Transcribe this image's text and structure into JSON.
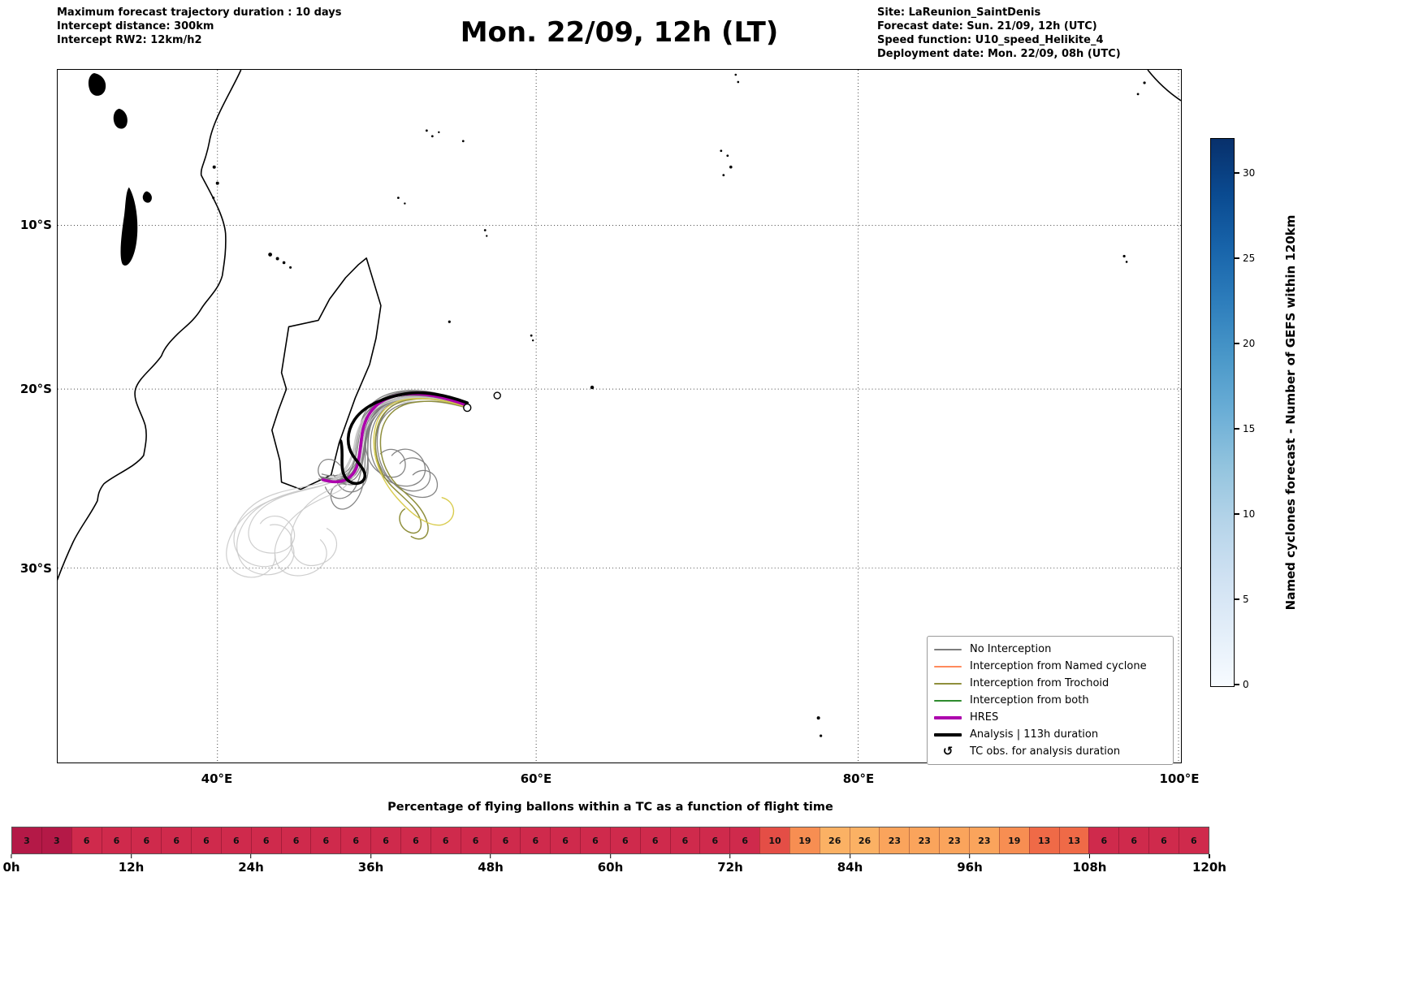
{
  "header": {
    "left_lines": [
      "Maximum forecast trajectory duration : 10 days",
      "Intercept distance: 300km",
      "Intercept RW2: 12km/h2"
    ],
    "title": "Mon. 22/09, 12h (LT)",
    "right_lines": [
      "Site: LaReunion_SaintDenis",
      "Forecast date: Sun. 21/09, 12h (UTC)",
      "Speed function: U10_speed_Helikite_4",
      "Deployment date: Mon. 22/09, 08h (UTC)"
    ]
  },
  "map": {
    "lat_ticks": [
      "10°S",
      "20°S",
      "30°S"
    ],
    "lon_ticks": [
      "40°E",
      "60°E",
      "80°E",
      "100°E"
    ],
    "legend_items": [
      {
        "label": "No Interception",
        "color": "#7d7d7d",
        "lw": 2
      },
      {
        "label": "Interception from Named cyclone",
        "color": "#ff8a5c",
        "lw": 2
      },
      {
        "label": "Interception from Trochoid",
        "color": "#8f8f3c",
        "lw": 2
      },
      {
        "label": "Interception from both",
        "color": "#2e8b2e",
        "lw": 2
      },
      {
        "label": "HRES",
        "color": "#ad00ad",
        "lw": 4
      },
      {
        "label": "Analysis | 113h duration",
        "color": "#000000",
        "lw": 4
      },
      {
        "label": "TC obs. for analysis duration",
        "symbol": "↺"
      }
    ]
  },
  "colorbar": {
    "label": "Named cyclones forecast - Number of GEFS within 120km",
    "ticks": [
      "0",
      "5",
      "10",
      "15",
      "20",
      "25",
      "30"
    ],
    "gradient": [
      "#f7fbff",
      "#e3eef9",
      "#cfe1f2",
      "#b5d4e9",
      "#93c4de",
      "#6baed6",
      "#4a98c9",
      "#2e7ebc",
      "#1864aa",
      "#0a4a90",
      "#08306b"
    ]
  },
  "chart_data": [
    {
      "type": "line",
      "title": "Mon. 22/09, 12h (LT)",
      "x_ticks": [
        "40°E",
        "60°E",
        "80°E",
        "100°E"
      ],
      "y_ticks": [
        "10°S",
        "20°S",
        "30°S"
      ],
      "legend_position": "lower right",
      "grid": "dotted",
      "series": [
        {
          "name": "No Interception",
          "color": "#7d7d7d",
          "lw": 1.3,
          "opacity": 0.95,
          "paths": [
            "M507 417 C480 406 450 398 425 401 C398 404 378 418 372 442 C366 466 368 488 358 500 C348 510 332 508 322 505",
            "M507 417 C478 404 445 395 420 399 C395 403 380 420 376 445 C372 470 372 492 360 503 C350 512 336 510 326 507",
            "M507 415 C482 407 455 402 430 406 C405 410 388 425 382 450 C377 472 378 495 366 505 C356 513 340 509 330 506",
            "M507 416 C485 405 458 397 432 400 C404 403 386 416 379 438 C372 462 374 486 362 499 C352 509 338 507 328 503",
            "M507 417 C480 405 452 399 428 403 C402 407 386 422 381 447 C376 472 385 492 402 500 C418 508 432 498 428 482 C424 468 408 464 398 474",
            "M507 418 C478 408 448 402 424 408 C400 414 388 432 386 456 C384 482 396 505 418 512 C440 519 458 505 452 486 C446 468 424 462 412 476",
            "M507 417 C480 408 450 402 426 406 C400 410 384 428 380 452 C376 478 376 505 364 520 C352 535 336 530 330 515",
            "M507 416 C482 404 452 396 426 399 C398 402 380 417 374 440 C369 463 370 486 358 497 C349 506 335 505 324 502",
            "M507 414 C484 402 456 394 430 396 C402 398 382 410 375 432 C368 456 370 480 359 493 C350 503 336 502 326 499",
            "M507 415 C480 402 450 394 424 398 C397 402 380 419 375 444 C371 468 372 490 361 501 C351 511 337 508 327 504",
            "M507 417 C479 406 449 400 424 404 C398 408 382 425 378 450 C374 476 366 498 346 506 C330 512 318 502 322 490 C326 478 340 478 348 488",
            "M507 418 C480 410 452 406 428 412 C404 418 392 438 392 462 C392 488 406 510 428 518 C448 525 464 512 458 494 C452 478 432 474 422 486",
            "M507 416 C483 406 456 400 431 403 C404 406 387 421 381 445 C376 468 377 491 365 502 C355 512 341 509 331 505",
            "M507 417 C481 407 453 400 428 404 C402 408 388 424 384 448 C380 472 386 494 376 506 C366 517 348 512 340 500",
            "M507 417 C479 407 449 401 425 405 C399 409 385 427 381 452 C377 478 382 505 372 525 C362 545 344 548 338 532 C333 518 344 508 356 512",
            "M507 415 C481 404 451 397 426 400 C399 403 382 419 376 443 C371 466 372 489 360 500 C350 510 336 507 326 503",
            "M507 417 C481 408 453 403 429 408 C405 413 395 432 394 456 C393 482 404 506 426 520 C448 534 470 528 468 510 C466 494 448 490 438 500",
            "M507 416 C480 406 450 400 425 404 C400 408 386 426 383 450 C380 476 388 500 376 514 C366 526 350 522 344 508"
          ]
        },
        {
          "name": "No Interception (faded)",
          "color": "#c9c9c9",
          "lw": 1.2,
          "opacity": 0.9,
          "paths": [
            "M507 417 C478 408 448 402 420 406 C390 410 372 428 368 455 C364 482 356 505 330 512 C300 520 268 525 248 545 C228 565 232 592 258 596 C284 600 300 580 288 562 C278 547 258 548 250 560",
            "M507 417 C476 407 444 402 416 408 C388 414 372 434 368 460 C364 486 350 508 322 514 C290 521 255 528 235 552 C212 580 218 615 248 622 C278 629 300 605 288 584",
            "M507 416 C477 406 446 400 418 405 C390 410 372 430 368 456 C364 482 352 504 326 510 C296 517 262 520 240 538 C214 559 210 590 230 605 C252 621 282 612 288 590 C293 572 278 558 262 562",
            "M507 418 C478 410 446 406 418 412 C392 418 378 438 376 464 C374 492 362 515 338 524 C310 535 284 552 272 578 C260 604 274 628 302 624 C330 620 340 595 324 580",
            "M507 417 C477 408 445 403 418 408 C390 413 374 432 370 458 C366 484 358 508 336 518 C312 529 292 548 288 574 C284 600 300 618 324 610 C348 602 350 576 332 566",
            "M507 416 C476 406 442 401 414 407 C386 413 370 434 366 460 C362 486 348 508 320 515 C288 523 252 530 230 552 C205 577 200 610 222 622 C244 634 270 620 268 598"
          ]
        },
        {
          "name": "Interception from Trochoid",
          "color": "#8f8f3c",
          "lw": 1.5,
          "opacity": 1,
          "paths": [
            "M507 417 C482 408 454 403 430 408 C406 413 394 430 392 454 C390 478 398 500 412 514 C426 528 440 538 446 552 C452 566 444 576 432 570 C420 564 418 548 428 542",
            "M507 418 C483 410 456 406 432 412 C410 418 398 436 398 460 C398 484 408 504 424 518 C440 532 452 544 456 560 C460 576 448 584 436 576"
          ]
        },
        {
          "name": "Interception from Trochoid (faded)",
          "color": "#d9cc4e",
          "lw": 1.4,
          "opacity": 1,
          "paths": [
            "M507 417 C480 408 452 403 428 407 C404 411 392 428 390 452 C388 478 398 505 418 528 C438 551 462 568 478 560 C494 552 490 532 474 528"
          ]
        },
        {
          "name": "HRES",
          "color": "#ad00ad",
          "lw": 3.6,
          "opacity": 1,
          "paths": [
            "M507 415 C478 404 448 397 423 401 C397 405 381 421 376 446 C372 470 373 492 361 502 C351 511 337 509 327 506"
          ]
        },
        {
          "name": "Analysis",
          "color": "#000000",
          "lw": 3.6,
          "opacity": 1,
          "paths": [
            "M505 411 C478 401 450 396 428 400 C404 404 378 414 366 432 C356 447 356 464 364 476 C372 488 382 496 378 505 C373 514 358 512 353 500 C348 488 353 472 349 458"
          ]
        }
      ]
    },
    {
      "type": "heatmap",
      "title": "Percentage of flying ballons within a TC as a function of flight time",
      "x_ticks": [
        "0h",
        "12h",
        "24h",
        "36h",
        "48h",
        "60h",
        "72h",
        "84h",
        "96h",
        "108h",
        "120h"
      ],
      "cell_hours": 3,
      "values": [
        3,
        3,
        6,
        6,
        6,
        6,
        6,
        6,
        6,
        6,
        6,
        6,
        6,
        6,
        6,
        6,
        6,
        6,
        6,
        6,
        6,
        6,
        6,
        6,
        6,
        10,
        19,
        26,
        26,
        23,
        23,
        23,
        23,
        19,
        13,
        13,
        6,
        6,
        6,
        6
      ],
      "value_colors": {
        "3": "#b41947",
        "6": "#cf2a4c",
        "10": "#e44e46",
        "13": "#ef6a47",
        "19": "#f78e52",
        "23": "#faa45c",
        "26": "#fbb164"
      }
    }
  ]
}
